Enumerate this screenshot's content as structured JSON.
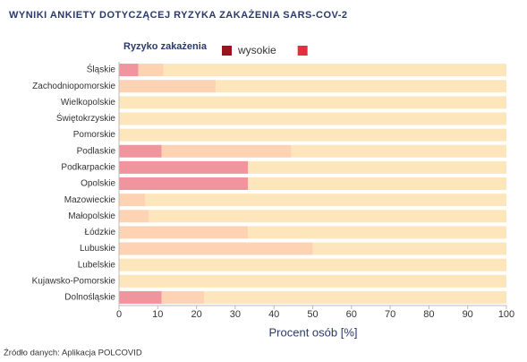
{
  "chart_data": {
    "type": "stacked-bar-horizontal",
    "title": "WYNIKI ANKIETY DOTYCZĄCEJ RYZYKA ZAKAŻENIA SARS-COV-2",
    "legend_title": "Ryzyko zakażenia",
    "legend": [
      {
        "label": "wysokie",
        "color": "#9a1420"
      },
      {
        "color": "#e2303f"
      }
    ],
    "categories": [
      "Śląskie",
      "Zachodniopomorskie",
      "Wielkopolskie",
      "Świętokrzyskie",
      "Pomorskie",
      "Podlaskie",
      "Podkarpackie",
      "Opolskie",
      "Mazowieckie",
      "Małopolskie",
      "Łódzkie",
      "Lubuskie",
      "Lubelskie",
      "Kujawsko-Pomorskie",
      "Dolnośląskie"
    ],
    "series": [
      {
        "color": "#f0959d",
        "values": [
          5,
          0,
          0,
          0,
          0,
          11,
          33.3,
          33.3,
          0,
          0,
          0,
          0,
          0,
          0,
          11
        ]
      },
      {
        "color": "#fdd3b3",
        "values": [
          6.5,
          25,
          0,
          0,
          0,
          33.5,
          0,
          0,
          6.7,
          7.7,
          33.3,
          50,
          0,
          0,
          11
        ]
      },
      {
        "color": "#fde6bb",
        "values": [
          88.5,
          75,
          100,
          100,
          100,
          55.5,
          66.7,
          66.7,
          93.3,
          92.3,
          66.7,
          50,
          100,
          100,
          78
        ]
      }
    ],
    "xlim": [
      0,
      100
    ],
    "xticks": [
      0,
      10,
      20,
      30,
      40,
      50,
      60,
      70,
      80,
      90,
      100
    ],
    "xlabel": "Procent osób [%]",
    "source": "Źródło danych: Aplikacja POLCOVID"
  }
}
